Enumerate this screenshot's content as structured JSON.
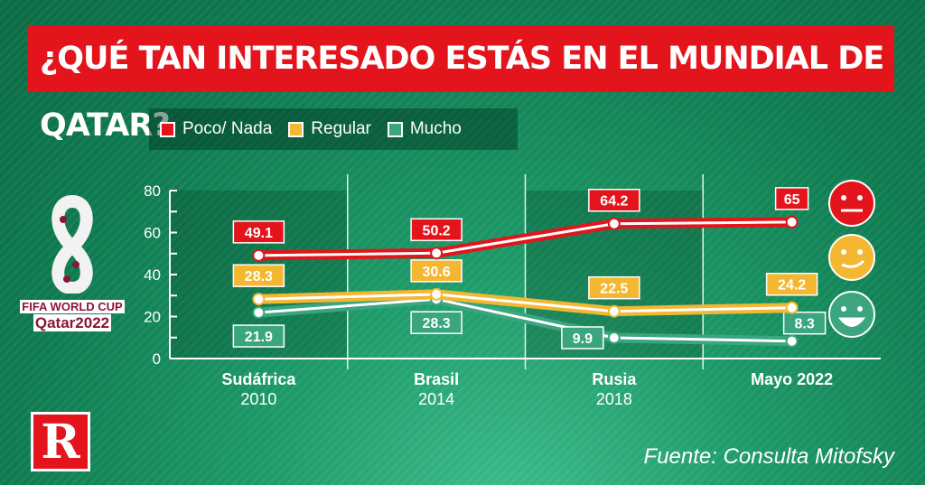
{
  "title": "¿QUÉ TAN INTERESADO ESTÁS EN EL MUNDIAL DE QATAR?",
  "logo": {
    "line1": "FIFA WORLD CUP",
    "line2": "Qatar2022"
  },
  "brand_logo": "R",
  "source": "Fuente: Consulta Mitofsky",
  "chart_data": {
    "type": "line",
    "categories": [
      {
        "name": "Sudáfrica",
        "year": "2010"
      },
      {
        "name": "Brasil",
        "year": "2014"
      },
      {
        "name": "Rusia",
        "year": "2018"
      },
      {
        "name": "Mayo 2022",
        "year": ""
      }
    ],
    "ylim": [
      0,
      80
    ],
    "yticks": [
      0,
      20,
      40,
      60,
      80
    ],
    "grid": "vertical",
    "legend": "top-left",
    "series": [
      {
        "name": "Poco/ Nada",
        "color": "#e3141b",
        "values": [
          49.1,
          50.2,
          64.2,
          65
        ],
        "labels": [
          "49.1",
          "50.2",
          "64.2",
          "65"
        ],
        "icon": "neutral-face-icon"
      },
      {
        "name": "Regular",
        "color": "#f4b731",
        "values": [
          28.3,
          30.6,
          22.5,
          24.2
        ],
        "labels": [
          "28.3",
          "30.6",
          "22.5",
          "24.2"
        ],
        "icon": "smirk-face-icon"
      },
      {
        "name": "Mucho",
        "color": "#3aa57e",
        "values": [
          21.9,
          28.3,
          9.9,
          8.3
        ],
        "labels": [
          "21.9",
          "28.3",
          "9.9",
          "8.3"
        ],
        "icon": "happy-face-icon"
      }
    ]
  }
}
